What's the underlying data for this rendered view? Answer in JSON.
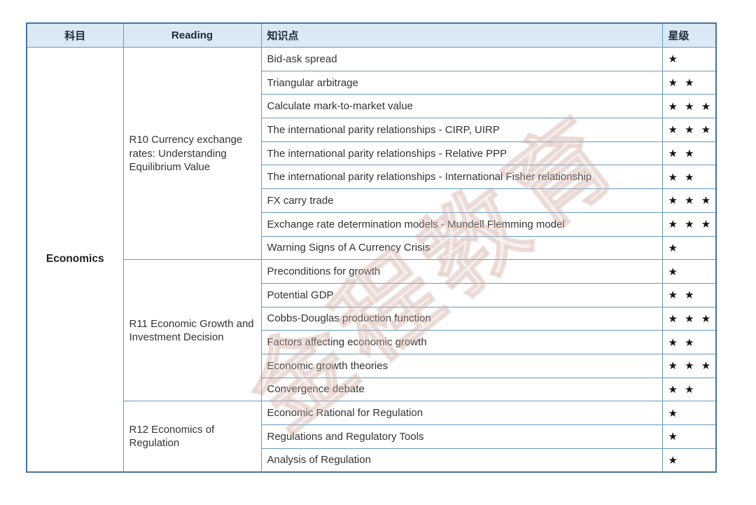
{
  "watermark": "金程教育",
  "table": {
    "headers": {
      "subject": "科目",
      "reading": "Reading",
      "topic": "知识点",
      "stars": "星级"
    },
    "subject": "Economics",
    "star_symbol": "★",
    "groups": [
      {
        "reading": "R10 Currency exchange rates: Understanding Equilibrium Value",
        "rows": [
          {
            "topic": "Bid-ask spread",
            "stars": 1
          },
          {
            "topic": "Triangular arbitrage",
            "stars": 2
          },
          {
            "topic": "Calculate mark-to-market value",
            "stars": 3
          },
          {
            "topic": "The international parity relationships - CIRP, UIRP",
            "stars": 3
          },
          {
            "topic": "The international parity relationships - Relative PPP",
            "stars": 2
          },
          {
            "topic": "The international parity relationships - International Fisher relationship",
            "stars": 2
          },
          {
            "topic": "FX carry trade",
            "stars": 3
          },
          {
            "topic": "Exchange rate determination models - Mundell Flemming model",
            "stars": 3
          },
          {
            "topic": "Warning Signs of A Currency Crisis",
            "stars": 1
          }
        ]
      },
      {
        "reading": "R11 Economic Growth and Investment Decision",
        "rows": [
          {
            "topic": "Preconditions for growth",
            "stars": 1
          },
          {
            "topic": "Potential GDP",
            "stars": 2
          },
          {
            "topic": "Cobbs-Douglas production function",
            "stars": 3
          },
          {
            "topic": "Factors affecting economic growth",
            "stars": 2
          },
          {
            "topic": "Economic growth theories",
            "stars": 3
          },
          {
            "topic": "Convergence debate",
            "stars": 2
          }
        ]
      },
      {
        "reading": "R12 Economics of Regulation",
        "rows": [
          {
            "topic": "Economic Rational for Regulation",
            "stars": 1
          },
          {
            "topic": "Regulations and Regulatory Tools",
            "stars": 1
          },
          {
            "topic": "Analysis of Regulation",
            "stars": 1
          }
        ]
      }
    ]
  }
}
